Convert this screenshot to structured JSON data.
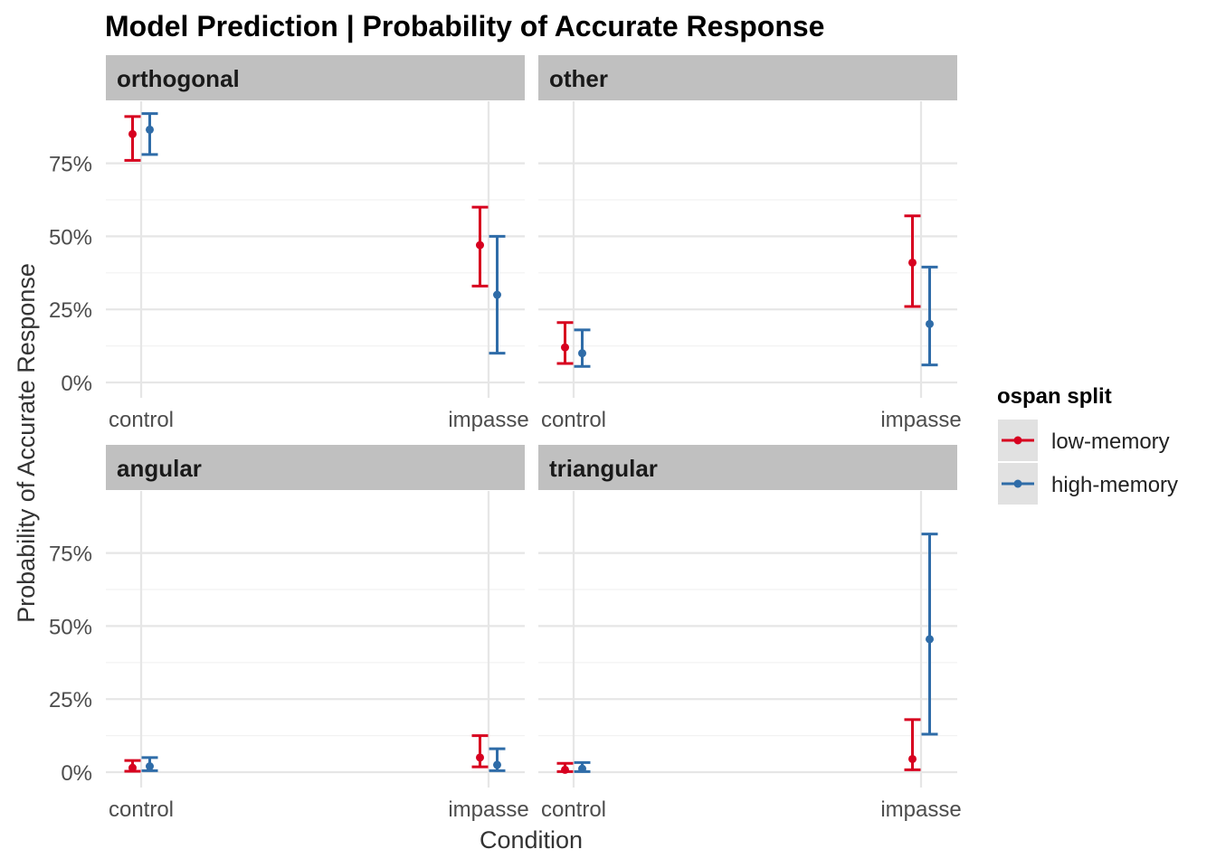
{
  "chart_data": {
    "type": "errorbar",
    "title": "Model Prediction | Probability of Accurate Response",
    "xlabel": "Condition",
    "ylabel": "Probability of Accurate Response",
    "categories": [
      "control",
      "impasse"
    ],
    "y_ticks": [
      "0%",
      "25%",
      "50%",
      "75%"
    ],
    "y_tick_values": [
      0,
      0.25,
      0.5,
      0.75
    ],
    "ylim": [
      0,
      1
    ],
    "legend": {
      "title": "ospan split",
      "placement": "right",
      "entries": [
        {
          "name": "low-memory",
          "color": "#d7001f"
        },
        {
          "name": "high-memory",
          "color": "#2f6ca8"
        }
      ]
    },
    "grid": true,
    "panels": [
      {
        "label": "orthogonal",
        "series": [
          {
            "name": "low-memory",
            "points": [
              {
                "x": "control",
                "y": 0.85,
                "lo": 0.76,
                "hi": 0.91
              },
              {
                "x": "impasse",
                "y": 0.47,
                "lo": 0.33,
                "hi": 0.6
              }
            ]
          },
          {
            "name": "high-memory",
            "points": [
              {
                "x": "control",
                "y": 0.865,
                "lo": 0.78,
                "hi": 0.92
              },
              {
                "x": "impasse",
                "y": 0.3,
                "lo": 0.1,
                "hi": 0.5
              }
            ]
          }
        ]
      },
      {
        "label": "other",
        "series": [
          {
            "name": "low-memory",
            "points": [
              {
                "x": "control",
                "y": 0.12,
                "lo": 0.065,
                "hi": 0.205
              },
              {
                "x": "impasse",
                "y": 0.41,
                "lo": 0.26,
                "hi": 0.57
              }
            ]
          },
          {
            "name": "high-memory",
            "points": [
              {
                "x": "control",
                "y": 0.1,
                "lo": 0.055,
                "hi": 0.18
              },
              {
                "x": "impasse",
                "y": 0.2,
                "lo": 0.06,
                "hi": 0.395
              }
            ]
          }
        ]
      },
      {
        "label": "angular",
        "series": [
          {
            "name": "low-memory",
            "points": [
              {
                "x": "control",
                "y": 0.015,
                "lo": 0.003,
                "hi": 0.04
              },
              {
                "x": "impasse",
                "y": 0.05,
                "lo": 0.018,
                "hi": 0.125
              }
            ]
          },
          {
            "name": "high-memory",
            "points": [
              {
                "x": "control",
                "y": 0.02,
                "lo": 0.005,
                "hi": 0.05
              },
              {
                "x": "impasse",
                "y": 0.025,
                "lo": 0.005,
                "hi": 0.08
              }
            ]
          }
        ]
      },
      {
        "label": "triangular",
        "series": [
          {
            "name": "low-memory",
            "points": [
              {
                "x": "control",
                "y": 0.008,
                "lo": 0.002,
                "hi": 0.03
              },
              {
                "x": "impasse",
                "y": 0.045,
                "lo": 0.008,
                "hi": 0.18
              }
            ]
          },
          {
            "name": "high-memory",
            "points": [
              {
                "x": "control",
                "y": 0.012,
                "lo": 0.002,
                "hi": 0.033
              },
              {
                "x": "impasse",
                "y": 0.455,
                "lo": 0.13,
                "hi": 0.815
              }
            ]
          }
        ]
      }
    ]
  }
}
